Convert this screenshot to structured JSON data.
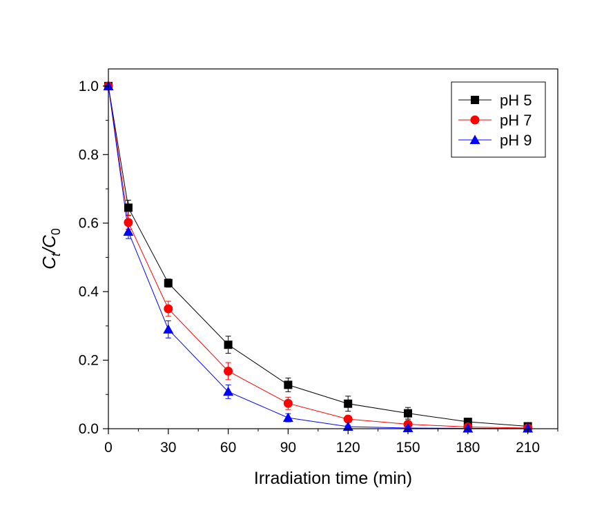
{
  "chart_data": {
    "type": "line",
    "xlabel": "Irradiation time (min)",
    "ylabel": {
      "main": "C",
      "sub1": "t",
      "slash": "/C",
      "sub2": "0"
    },
    "xlim": [
      0,
      225
    ],
    "ylim": [
      0,
      1.05
    ],
    "xticks": [
      0,
      30,
      60,
      90,
      120,
      150,
      180,
      210
    ],
    "yticks": [
      0.0,
      0.2,
      0.4,
      0.6,
      0.8,
      1.0
    ],
    "ytick_labels": [
      "0.0",
      "0.2",
      "0.4",
      "0.6",
      "0.8",
      "1.0"
    ],
    "grid": false,
    "legend_position": "top-right",
    "x": [
      0,
      10,
      30,
      60,
      90,
      120,
      150,
      180,
      210
    ],
    "series": [
      {
        "name": "pH 5",
        "color": "#000000",
        "marker": "square",
        "values": [
          1.0,
          0.645,
          0.425,
          0.245,
          0.128,
          0.073,
          0.045,
          0.02,
          0.007
        ],
        "errors": [
          0,
          0.022,
          0.012,
          0.025,
          0.02,
          0.022,
          0.017,
          0.01,
          0.005
        ]
      },
      {
        "name": "pH 7",
        "color": "#ff0000",
        "marker": "circle",
        "values": [
          1.0,
          0.602,
          0.35,
          0.168,
          0.074,
          0.028,
          0.013,
          0.005,
          0.002
        ],
        "errors": [
          0,
          0.02,
          0.022,
          0.025,
          0.018,
          0.01,
          0.006,
          0.003,
          0.002
        ]
      },
      {
        "name": "pH 9",
        "color": "#0000ff",
        "marker": "triangle",
        "values": [
          1.0,
          0.575,
          0.29,
          0.108,
          0.032,
          0.006,
          0.002,
          0.001,
          0.001
        ],
        "errors": [
          0,
          0.02,
          0.025,
          0.02,
          0.012,
          0.004,
          0.002,
          0.001,
          0.001
        ]
      }
    ]
  }
}
